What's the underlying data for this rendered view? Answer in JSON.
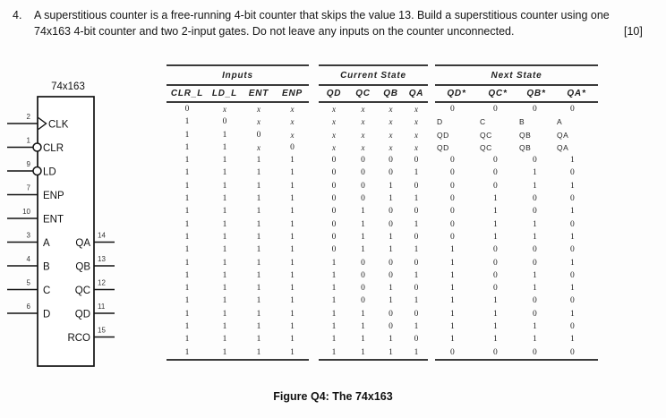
{
  "question": {
    "number": "4.",
    "line1": "A superstitious counter is a free-running 4-bit counter that skips the value 13. Build a superstitious counter using one",
    "line2": "74x163 4-bit counter and two 2-input gates. Do not leave any inputs on the counter unconnected.",
    "marks": "[10]"
  },
  "chip": {
    "title": "74x163",
    "left_pins": [
      {
        "num": "2",
        "label": "CLK"
      },
      {
        "num": "1",
        "label": "CLR"
      },
      {
        "num": "9",
        "label": "LD"
      },
      {
        "num": "7",
        "label": "ENP"
      },
      {
        "num": "10",
        "label": "ENT"
      },
      {
        "num": "3",
        "label": "A"
      },
      {
        "num": "4",
        "label": "B"
      },
      {
        "num": "5",
        "label": "C"
      },
      {
        "num": "6",
        "label": "D"
      }
    ],
    "right_pins": [
      {
        "num": "14",
        "label": "QA"
      },
      {
        "num": "13",
        "label": "QB"
      },
      {
        "num": "12",
        "label": "QC"
      },
      {
        "num": "11",
        "label": "QD"
      },
      {
        "num": "15",
        "label": "RCO"
      }
    ]
  },
  "table": {
    "group_headers": [
      "Inputs",
      "Current State",
      "Next State"
    ],
    "columns": [
      "CLR_L",
      "LD_L",
      "ENT",
      "ENP",
      "QD",
      "QC",
      "QB",
      "QA",
      "QD*",
      "QC*",
      "QB*",
      "QA*"
    ],
    "rows": [
      [
        "0",
        "x",
        "x",
        "x",
        "x",
        "x",
        "x",
        "x",
        "0",
        "0",
        "0",
        "0"
      ],
      [
        "1",
        "0",
        "x",
        "x",
        "x",
        "x",
        "x",
        "x",
        "D",
        "C",
        "B",
        "A"
      ],
      [
        "1",
        "1",
        "0",
        "x",
        "x",
        "x",
        "x",
        "x",
        "QD",
        "QC",
        "QB",
        "QA"
      ],
      [
        "1",
        "1",
        "x",
        "0",
        "x",
        "x",
        "x",
        "x",
        "QD",
        "QC",
        "QB",
        "QA"
      ],
      [
        "1",
        "1",
        "1",
        "1",
        "0",
        "0",
        "0",
        "0",
        "0",
        "0",
        "0",
        "1"
      ],
      [
        "1",
        "1",
        "1",
        "1",
        "0",
        "0",
        "0",
        "1",
        "0",
        "0",
        "1",
        "0"
      ],
      [
        "1",
        "1",
        "1",
        "1",
        "0",
        "0",
        "1",
        "0",
        "0",
        "0",
        "1",
        "1"
      ],
      [
        "1",
        "1",
        "1",
        "1",
        "0",
        "0",
        "1",
        "1",
        "0",
        "1",
        "0",
        "0"
      ],
      [
        "1",
        "1",
        "1",
        "1",
        "0",
        "1",
        "0",
        "0",
        "0",
        "1",
        "0",
        "1"
      ],
      [
        "1",
        "1",
        "1",
        "1",
        "0",
        "1",
        "0",
        "1",
        "0",
        "1",
        "1",
        "0"
      ],
      [
        "1",
        "1",
        "1",
        "1",
        "0",
        "1",
        "1",
        "0",
        "0",
        "1",
        "1",
        "1"
      ],
      [
        "1",
        "1",
        "1",
        "1",
        "0",
        "1",
        "1",
        "1",
        "1",
        "0",
        "0",
        "0"
      ],
      [
        "1",
        "1",
        "1",
        "1",
        "1",
        "0",
        "0",
        "0",
        "1",
        "0",
        "0",
        "1"
      ],
      [
        "1",
        "1",
        "1",
        "1",
        "1",
        "0",
        "0",
        "1",
        "1",
        "0",
        "1",
        "0"
      ],
      [
        "1",
        "1",
        "1",
        "1",
        "1",
        "0",
        "1",
        "0",
        "1",
        "0",
        "1",
        "1"
      ],
      [
        "1",
        "1",
        "1",
        "1",
        "1",
        "0",
        "1",
        "1",
        "1",
        "1",
        "0",
        "0"
      ],
      [
        "1",
        "1",
        "1",
        "1",
        "1",
        "1",
        "0",
        "0",
        "1",
        "1",
        "0",
        "1"
      ],
      [
        "1",
        "1",
        "1",
        "1",
        "1",
        "1",
        "0",
        "1",
        "1",
        "1",
        "1",
        "0"
      ],
      [
        "1",
        "1",
        "1",
        "1",
        "1",
        "1",
        "1",
        "0",
        "1",
        "1",
        "1",
        "1"
      ],
      [
        "1",
        "1",
        "1",
        "1",
        "1",
        "1",
        "1",
        "1",
        "0",
        "0",
        "0",
        "0"
      ]
    ]
  },
  "caption": "Figure Q4: The 74x163"
}
